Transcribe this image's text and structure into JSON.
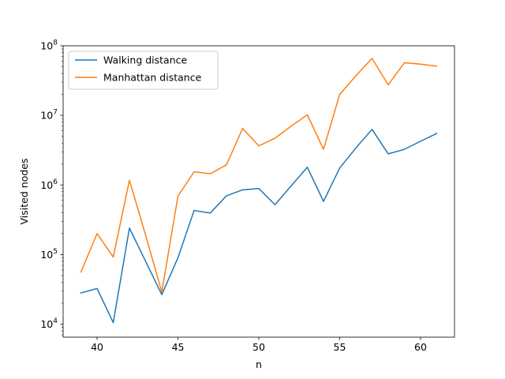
{
  "chart_data": {
    "type": "line",
    "xlabel": "n",
    "ylabel": "Visited nodes",
    "yscale": "log",
    "xlim": [
      37.9,
      62.1
    ],
    "ylim": [
      6500,
      100000000
    ],
    "xticks": [
      40,
      45,
      50,
      55,
      60
    ],
    "xtick_labels": [
      "40",
      "45",
      "50",
      "55",
      "60"
    ],
    "yticks": [
      10000,
      100000,
      1000000,
      10000000,
      100000000
    ],
    "ytick_labels": [
      {
        "base": "10",
        "exp": "4"
      },
      {
        "base": "10",
        "exp": "5"
      },
      {
        "base": "10",
        "exp": "6"
      },
      {
        "base": "10",
        "exp": "7"
      },
      {
        "base": "10",
        "exp": "8"
      }
    ],
    "grid": false,
    "legend_position": "upper-left",
    "x": [
      39,
      40,
      41,
      42,
      43,
      44,
      45,
      46,
      47,
      48,
      49,
      50,
      51,
      52,
      53,
      54,
      55,
      56,
      57,
      58,
      59,
      60,
      61
    ],
    "series": [
      {
        "name": "Walking distance",
        "color": "#1f77b4",
        "values": [
          28000,
          32500,
          10500,
          240000,
          80000,
          26500,
          90000,
          430000,
          395000,
          700000,
          850000,
          890000,
          520000,
          970000,
          1800000,
          580000,
          1750000,
          3400000,
          6300000,
          2800000,
          3250000,
          4250000,
          5500000
        ]
      },
      {
        "name": "Manhattan distance",
        "color": "#ff7f0e",
        "values": [
          56000,
          200000,
          92000,
          1170000,
          190000,
          29000,
          690000,
          1550000,
          1450000,
          1950000,
          6500000,
          3650000,
          4700000,
          7000000,
          10200000,
          3250000,
          20000000,
          37000000,
          66000000,
          27500000,
          57000000,
          54500000,
          51000000
        ]
      }
    ]
  }
}
